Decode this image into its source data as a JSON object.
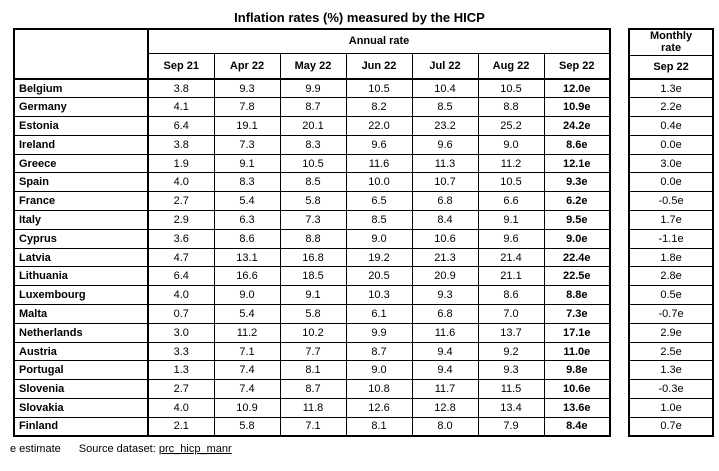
{
  "title": "Inflation rates (%) measured by the HICP",
  "annual_table": {
    "group_header": "Annual rate",
    "columns": [
      "Sep 21",
      "Apr 22",
      "May 22",
      "Jun 22",
      "Jul 22",
      "Aug 22",
      "Sep 22"
    ],
    "rows": [
      {
        "country": "Belgium",
        "values": [
          "3.8",
          "9.3",
          "9.9",
          "10.5",
          "10.4",
          "10.5",
          "12.0e"
        ],
        "monthly": "1.3e"
      },
      {
        "country": "Germany",
        "values": [
          "4.1",
          "7.8",
          "8.7",
          "8.2",
          "8.5",
          "8.8",
          "10.9e"
        ],
        "monthly": "2.2e"
      },
      {
        "country": "Estonia",
        "values": [
          "6.4",
          "19.1",
          "20.1",
          "22.0",
          "23.2",
          "25.2",
          "24.2e"
        ],
        "monthly": "0.4e"
      },
      {
        "country": "Ireland",
        "values": [
          "3.8",
          "7.3",
          "8.3",
          "9.6",
          "9.6",
          "9.0",
          "8.6e"
        ],
        "monthly": "0.0e"
      },
      {
        "country": "Greece",
        "values": [
          "1.9",
          "9.1",
          "10.5",
          "11.6",
          "11.3",
          "11.2",
          "12.1e"
        ],
        "monthly": "3.0e"
      },
      {
        "country": "Spain",
        "values": [
          "4.0",
          "8.3",
          "8.5",
          "10.0",
          "10.7",
          "10.5",
          "9.3e"
        ],
        "monthly": "0.0e"
      },
      {
        "country": "France",
        "values": [
          "2.7",
          "5.4",
          "5.8",
          "6.5",
          "6.8",
          "6.6",
          "6.2e"
        ],
        "monthly": "-0.5e"
      },
      {
        "country": "Italy",
        "values": [
          "2.9",
          "6.3",
          "7.3",
          "8.5",
          "8.4",
          "9.1",
          "9.5e"
        ],
        "monthly": "1.7e"
      },
      {
        "country": "Cyprus",
        "values": [
          "3.6",
          "8.6",
          "8.8",
          "9.0",
          "10.6",
          "9.6",
          "9.0e"
        ],
        "monthly": "-1.1e"
      },
      {
        "country": "Latvia",
        "values": [
          "4.7",
          "13.1",
          "16.8",
          "19.2",
          "21.3",
          "21.4",
          "22.4e"
        ],
        "monthly": "1.8e"
      },
      {
        "country": "Lithuania",
        "values": [
          "6.4",
          "16.6",
          "18.5",
          "20.5",
          "20.9",
          "21.1",
          "22.5e"
        ],
        "monthly": "2.8e"
      },
      {
        "country": "Luxembourg",
        "values": [
          "4.0",
          "9.0",
          "9.1",
          "10.3",
          "9.3",
          "8.6",
          "8.8e"
        ],
        "monthly": "0.5e"
      },
      {
        "country": "Malta",
        "values": [
          "0.7",
          "5.4",
          "5.8",
          "6.1",
          "6.8",
          "7.0",
          "7.3e"
        ],
        "monthly": "-0.7e"
      },
      {
        "country": "Netherlands",
        "values": [
          "3.0",
          "11.2",
          "10.2",
          "9.9",
          "11.6",
          "13.7",
          "17.1e"
        ],
        "monthly": "2.9e"
      },
      {
        "country": "Austria",
        "values": [
          "3.3",
          "7.1",
          "7.7",
          "8.7",
          "9.4",
          "9.2",
          "11.0e"
        ],
        "monthly": "2.5e"
      },
      {
        "country": "Portugal",
        "values": [
          "1.3",
          "7.4",
          "8.1",
          "9.0",
          "9.4",
          "9.3",
          "9.8e"
        ],
        "monthly": "1.3e"
      },
      {
        "country": "Slovenia",
        "values": [
          "2.7",
          "7.4",
          "8.7",
          "10.8",
          "11.7",
          "11.5",
          "10.6e"
        ],
        "monthly": "-0.3e"
      },
      {
        "country": "Slovakia",
        "values": [
          "4.0",
          "10.9",
          "11.8",
          "12.6",
          "12.8",
          "13.4",
          "13.6e"
        ],
        "monthly": "1.0e"
      },
      {
        "country": "Finland",
        "values": [
          "2.1",
          "5.8",
          "7.1",
          "8.1",
          "8.0",
          "7.9",
          "8.4e"
        ],
        "monthly": "0.7e"
      }
    ]
  },
  "monthly_table": {
    "group_header": "Monthly rate",
    "column": "Sep 22"
  },
  "footer": {
    "estimate_note": "e estimate",
    "source_label": "Source dataset:",
    "source_link": "prc_hicp_manr"
  }
}
